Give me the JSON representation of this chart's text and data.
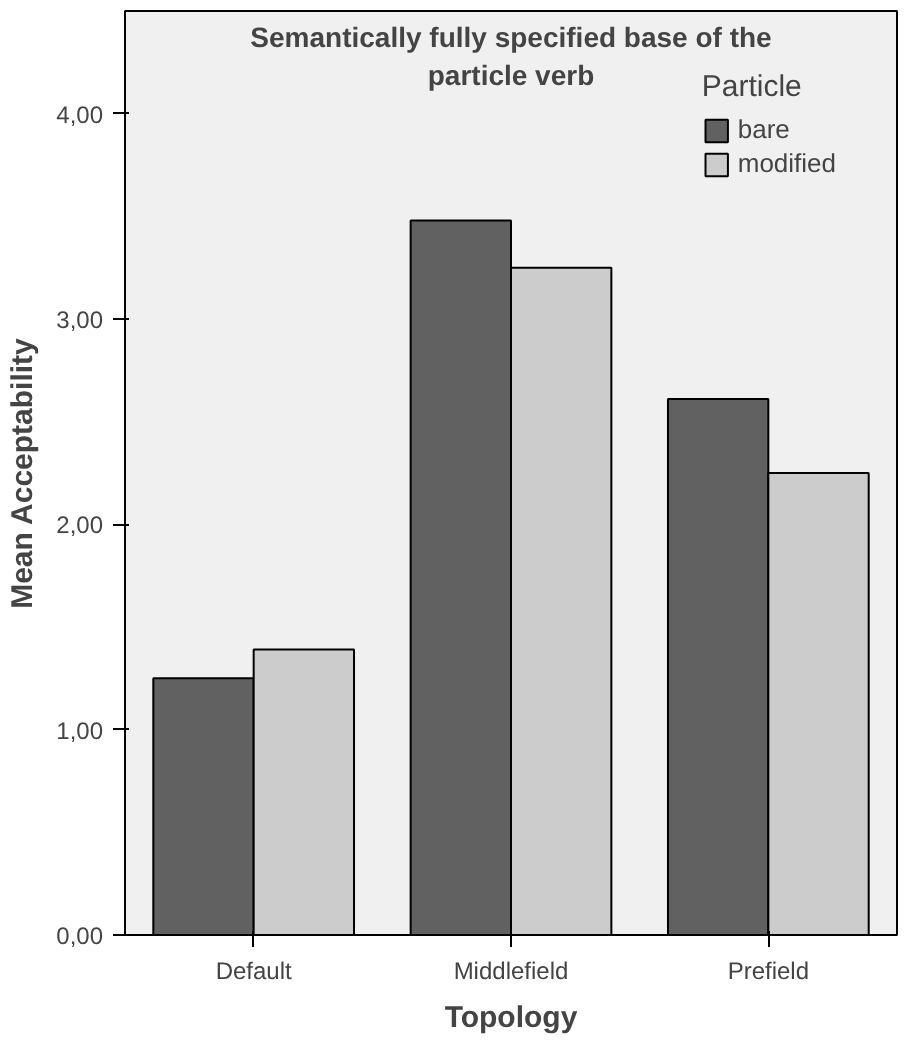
{
  "chart_data": {
    "type": "bar",
    "title": "Semantically fully specified base of the particle verb",
    "xlabel": "Topology",
    "ylabel": "Mean Acceptability",
    "legend_title": "Particle",
    "categories": [
      "Default",
      "Middlefield",
      "Prefield"
    ],
    "series": [
      {
        "name": "bare",
        "color": "#616161",
        "values": [
          1.25,
          3.48,
          2.61
        ]
      },
      {
        "name": "modified",
        "color": "#cccccc",
        "values": [
          1.39,
          3.25,
          2.25
        ]
      }
    ],
    "ylim": [
      0,
      4.5
    ],
    "yticks": [
      {
        "value": 0,
        "label": "0,00"
      },
      {
        "value": 1,
        "label": "1,00"
      },
      {
        "value": 2,
        "label": "2,00"
      },
      {
        "value": 3,
        "label": "3,00"
      },
      {
        "value": 4,
        "label": "4,00"
      }
    ],
    "grid": false,
    "legend": "top right"
  }
}
